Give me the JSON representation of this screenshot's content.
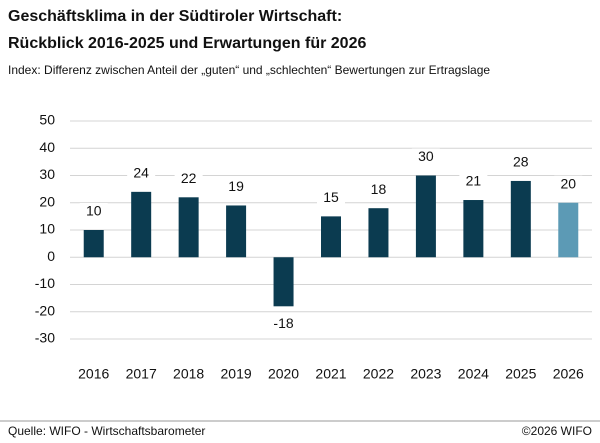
{
  "chart_data": {
    "type": "bar",
    "title": "Geschäftsklima in der Südtiroler Wirtschaft:",
    "subtitle": "Rückblick 2016-2025 und Erwartungen für 2026",
    "note": "Index: Differenz zwischen Anteil der „guten“ und „schlechten“ Bewertungen zur Ertragslage",
    "categories": [
      "2016",
      "2017",
      "2018",
      "2019",
      "2020",
      "2021",
      "2022",
      "2023",
      "2024",
      "2025",
      "2026"
    ],
    "values": [
      10,
      24,
      22,
      19,
      -18,
      15,
      18,
      30,
      21,
      28,
      20
    ],
    "colors": [
      "#0b3b50",
      "#0b3b50",
      "#0b3b50",
      "#0b3b50",
      "#0b3b50",
      "#0b3b50",
      "#0b3b50",
      "#0b3b50",
      "#0b3b50",
      "#0b3b50",
      "#5c9ab5"
    ],
    "ylim": [
      -30,
      50
    ],
    "yticks": [
      -30,
      -20,
      -10,
      0,
      10,
      20,
      30,
      40,
      50
    ],
    "grid": true,
    "source": "Quelle: WIFO - Wirtschaftsbarometer",
    "copyright": "©2026 WIFO"
  }
}
